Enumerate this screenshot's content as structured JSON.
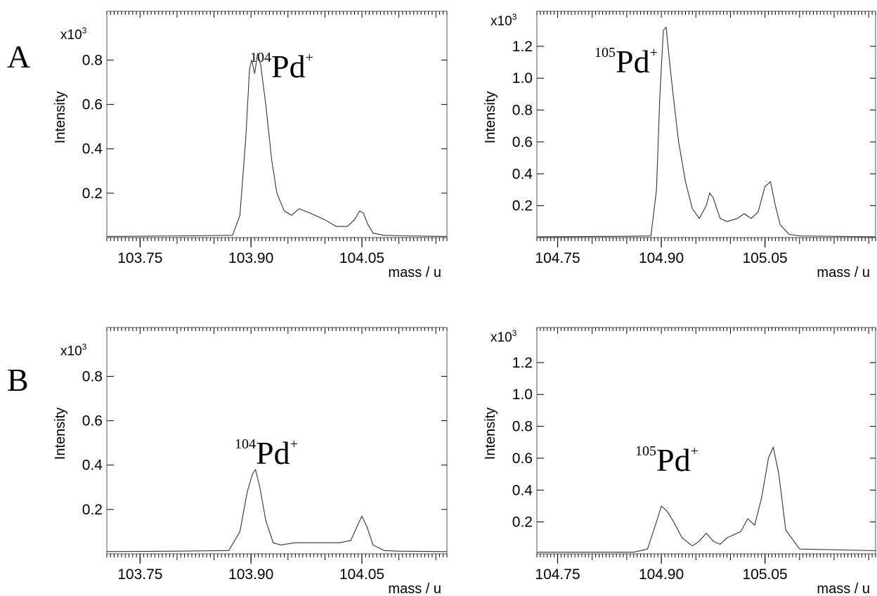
{
  "panel_labels": [
    "A",
    "B"
  ],
  "chart_data": [
    {
      "type": "line",
      "row": "A",
      "ion_mass": "104",
      "ion_symbol": "Pd",
      "ion_charge": "+",
      "ylabel": "Intensity",
      "xlabel": "mass / u",
      "y_multiplier": "x10",
      "y_multiplier_exp": "3",
      "xlim": [
        103.705,
        104.165
      ],
      "ylim": [
        0,
        1.02
      ],
      "x_ticks": [
        103.75,
        103.9,
        104.05
      ],
      "x_tick_labels": [
        "103.75",
        "103.90",
        "104.05"
      ],
      "y_ticks": [
        0.2,
        0.4,
        0.6,
        0.8
      ],
      "y_tick_labels": [
        "0.2",
        "0.4",
        "0.6",
        "0.8"
      ],
      "x": [
        103.705,
        103.82,
        103.875,
        103.885,
        103.893,
        103.898,
        103.901,
        103.905,
        103.909,
        103.913,
        103.92,
        103.928,
        103.935,
        103.945,
        103.955,
        103.965,
        103.98,
        104.0,
        104.015,
        104.03,
        104.04,
        104.047,
        104.052,
        104.058,
        104.065,
        104.08,
        104.1,
        104.165
      ],
      "y": [
        0.005,
        0.008,
        0.01,
        0.1,
        0.45,
        0.76,
        0.8,
        0.74,
        0.83,
        0.78,
        0.6,
        0.35,
        0.2,
        0.12,
        0.1,
        0.13,
        0.11,
        0.08,
        0.05,
        0.05,
        0.08,
        0.12,
        0.11,
        0.06,
        0.02,
        0.01,
        0.008,
        0.005
      ]
    },
    {
      "type": "line",
      "row": "A",
      "ion_mass": "105",
      "ion_symbol": "Pd",
      "ion_charge": "+",
      "ylabel": "Intensity",
      "xlabel": "mass / u",
      "y_multiplier": "x10",
      "y_multiplier_exp": "3",
      "xlim": [
        104.72,
        105.21
      ],
      "ylim": [
        0,
        1.42
      ],
      "x_ticks": [
        104.75,
        104.9,
        105.05
      ],
      "x_tick_labels": [
        "104.75",
        "104.90",
        "105.05"
      ],
      "y_ticks": [
        0.2,
        0.4,
        0.6,
        0.8,
        1.0,
        1.2
      ],
      "y_tick_labels": [
        "0.2",
        "0.4",
        "0.6",
        "0.8",
        "1.0",
        "1.2"
      ],
      "x": [
        104.72,
        104.85,
        104.885,
        104.893,
        104.898,
        104.903,
        104.907,
        104.912,
        104.917,
        104.925,
        104.935,
        104.945,
        104.955,
        104.965,
        104.97,
        104.975,
        104.985,
        104.995,
        105.01,
        105.02,
        105.03,
        105.04,
        105.05,
        105.058,
        105.065,
        105.072,
        105.085,
        105.1,
        105.21
      ],
      "y": [
        0.005,
        0.008,
        0.01,
        0.3,
        0.9,
        1.3,
        1.32,
        1.1,
        0.9,
        0.6,
        0.35,
        0.18,
        0.12,
        0.2,
        0.28,
        0.25,
        0.12,
        0.1,
        0.12,
        0.15,
        0.12,
        0.16,
        0.32,
        0.35,
        0.2,
        0.08,
        0.02,
        0.01,
        0.005
      ]
    },
    {
      "type": "line",
      "row": "B",
      "ion_mass": "104",
      "ion_symbol": "Pd",
      "ion_charge": "+",
      "ylabel": "Intensity",
      "xlabel": "mass / u",
      "y_multiplier": "x10",
      "y_multiplier_exp": "3",
      "xlim": [
        103.705,
        104.165
      ],
      "ylim": [
        0,
        1.02
      ],
      "x_ticks": [
        103.75,
        103.9,
        104.05
      ],
      "x_tick_labels": [
        "103.75",
        "103.90",
        "104.05"
      ],
      "y_ticks": [
        0.2,
        0.4,
        0.6,
        0.8
      ],
      "y_tick_labels": [
        "0.2",
        "0.4",
        "0.6",
        "0.8"
      ],
      "x": [
        103.705,
        103.8,
        103.87,
        103.885,
        103.895,
        103.902,
        103.906,
        103.912,
        103.92,
        103.93,
        103.94,
        103.96,
        103.98,
        104.0,
        104.02,
        104.035,
        104.043,
        104.05,
        104.057,
        104.065,
        104.08,
        104.1,
        104.165
      ],
      "y": [
        0.01,
        0.012,
        0.015,
        0.1,
        0.28,
        0.36,
        0.38,
        0.3,
        0.15,
        0.05,
        0.04,
        0.05,
        0.05,
        0.05,
        0.05,
        0.06,
        0.12,
        0.17,
        0.12,
        0.04,
        0.015,
        0.012,
        0.01
      ]
    },
    {
      "type": "line",
      "row": "B",
      "ion_mass": "105",
      "ion_symbol": "Pd",
      "ion_charge": "+",
      "ylabel": "Intensity",
      "xlabel": "mass / u",
      "y_multiplier": "x10",
      "y_multiplier_exp": "3",
      "xlim": [
        104.72,
        105.21
      ],
      "ylim": [
        0,
        1.42
      ],
      "x_ticks": [
        104.75,
        104.9,
        105.05
      ],
      "x_tick_labels": [
        "104.75",
        "104.90",
        "105.05"
      ],
      "y_ticks": [
        0.2,
        0.4,
        0.6,
        0.8,
        1.0,
        1.2
      ],
      "y_tick_labels": [
        "0.2",
        "0.4",
        "0.6",
        "0.8",
        "1.0",
        "1.2"
      ],
      "x": [
        104.72,
        104.86,
        104.88,
        104.893,
        104.9,
        104.908,
        104.918,
        104.93,
        104.945,
        104.955,
        104.965,
        104.975,
        104.985,
        104.995,
        105.005,
        105.015,
        105.025,
        105.035,
        105.045,
        105.055,
        105.062,
        105.07,
        105.08,
        105.1,
        105.21
      ],
      "y": [
        0.01,
        0.01,
        0.03,
        0.2,
        0.3,
        0.27,
        0.2,
        0.1,
        0.05,
        0.08,
        0.13,
        0.08,
        0.06,
        0.1,
        0.12,
        0.14,
        0.22,
        0.18,
        0.35,
        0.6,
        0.67,
        0.5,
        0.15,
        0.03,
        0.02
      ]
    }
  ]
}
